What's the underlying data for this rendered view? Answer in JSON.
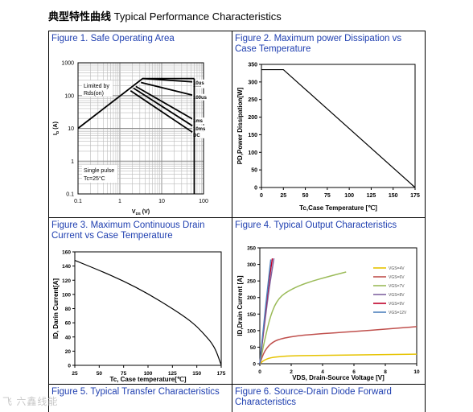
{
  "page": {
    "title_cn": "典型特性曲线",
    "title_en": "Typical Performance Characteristics",
    "watermark": "飞 六鑫线能"
  },
  "chart_data": [
    {
      "id": "fig1",
      "type": "line",
      "panel_title": "Figure 1. Safe Operating Area",
      "xlabel": "V_DS (V)",
      "ylabel": "I_D (A)",
      "xscale": "log",
      "yscale": "log",
      "xlim": [
        0.1,
        100
      ],
      "ylim": [
        0.1,
        1000
      ],
      "x_ticks": [
        "0.1",
        "1",
        "10",
        "100"
      ],
      "y_ticks": [
        "1000",
        "100",
        "10",
        "1",
        "0.1"
      ],
      "grid": true,
      "annotations": [
        "Limited by",
        "Rds(on)",
        "Single pulse",
        "Tc=25°C"
      ],
      "series": [
        {
          "name": "1us",
          "x": [
            0.1,
            3.5,
            7.5,
            60
          ],
          "y": [
            10,
            330,
            330,
            330
          ]
        },
        {
          "name": "10us",
          "x": [
            3.5,
            60
          ],
          "y": [
            330,
            260
          ]
        },
        {
          "name": "100us",
          "x": [
            3.2,
            60
          ],
          "y": [
            250,
            100
          ]
        },
        {
          "name": "1ms",
          "x": [
            2.4,
            60
          ],
          "y": [
            190,
            18
          ]
        },
        {
          "name": "10ms",
          "x": [
            2.1,
            60
          ],
          "y": [
            170,
            11
          ]
        },
        {
          "name": "DC",
          "x": [
            1.8,
            60
          ],
          "y": [
            140,
            7
          ]
        }
      ]
    },
    {
      "id": "fig2",
      "type": "line",
      "panel_title": "Figure 2. Maximum power Dissipation vs Case Temperature",
      "xlabel": "Tc,Case Temperature [℃]",
      "ylabel": "PD,Power Dissipation[W]",
      "xlim": [
        0,
        175
      ],
      "ylim": [
        0,
        350
      ],
      "x_ticks": [
        0,
        25,
        50,
        75,
        100,
        125,
        150,
        175
      ],
      "y_ticks": [
        0,
        50,
        100,
        150,
        200,
        250,
        300,
        350
      ],
      "grid": false,
      "series": [
        {
          "x": [
            0,
            25,
            175
          ],
          "y": [
            335,
            335,
            0
          ]
        }
      ]
    },
    {
      "id": "fig3",
      "type": "line",
      "panel_title": "Figure 3. Maximum Continuous Drain Current vs Case Temperature",
      "xlabel": "Tc, Case temperature[℃]",
      "ylabel": "ID, Darin Current[A]",
      "xlim": [
        25,
        175
      ],
      "ylim": [
        0,
        160
      ],
      "x_ticks": [
        25,
        50,
        75,
        100,
        125,
        150,
        175
      ],
      "y_ticks": [
        0,
        20,
        40,
        60,
        80,
        100,
        120,
        140,
        160
      ],
      "grid": false,
      "series": [
        {
          "x": [
            25,
            50,
            75,
            100,
            125,
            140,
            150,
            160,
            165,
            170,
            175
          ],
          "y": [
            148,
            134,
            119,
            101,
            80,
            66,
            55,
            40,
            32,
            20,
            0
          ]
        }
      ]
    },
    {
      "id": "fig4",
      "type": "line",
      "panel_title": "Figure 4. Typical Output Characteristics",
      "xlabel": "VDS, Drain-Source Voltage [V]",
      "ylabel": "ID,Drain Current [A]",
      "xlim": [
        0,
        10
      ],
      "ylim": [
        0,
        350
      ],
      "x_ticks": [
        0,
        2,
        4,
        6,
        8,
        10
      ],
      "y_ticks": [
        0,
        50,
        100,
        150,
        200,
        250,
        300,
        350
      ],
      "grid": false,
      "legend": "right",
      "series": [
        {
          "name": "VGS=4V",
          "color": "#e6c300",
          "x": [
            0,
            0.3,
            0.8,
            2,
            4,
            7,
            10
          ],
          "y": [
            0,
            12,
            20,
            24,
            25,
            27,
            29
          ]
        },
        {
          "name": "VGS=6V",
          "color": "#c0504d",
          "x": [
            0,
            0.3,
            0.8,
            1.5,
            3,
            6,
            10
          ],
          "y": [
            0,
            40,
            66,
            78,
            88,
            97,
            112
          ]
        },
        {
          "name": "VGS=7V",
          "color": "#9bbb59",
          "x": [
            0,
            0.3,
            0.7,
            1.2,
            2,
            3,
            4.5,
            5.5
          ],
          "y": [
            0,
            70,
            150,
            200,
            225,
            245,
            265,
            277
          ]
        },
        {
          "name": "VGS=8V",
          "color": "#8064a2",
          "x": [
            0,
            0.3,
            0.6,
            0.9
          ],
          "y": [
            0,
            120,
            230,
            318
          ]
        },
        {
          "name": "VGS=9V",
          "color": "#c0002a",
          "x": [
            0,
            0.3,
            0.55,
            0.8
          ],
          "y": [
            0,
            130,
            240,
            318
          ]
        },
        {
          "name": "VGS=12V",
          "color": "#4f81bd",
          "x": [
            0,
            0.25,
            0.5,
            0.7
          ],
          "y": [
            0,
            120,
            230,
            315
          ]
        }
      ]
    },
    {
      "id": "fig5",
      "type": "line",
      "panel_title": "Figure 5. Typical Transfer Characteristics"
    },
    {
      "id": "fig6",
      "type": "line",
      "panel_title": "Figure 6. Source-Drain Diode Forward Characteristics"
    }
  ]
}
